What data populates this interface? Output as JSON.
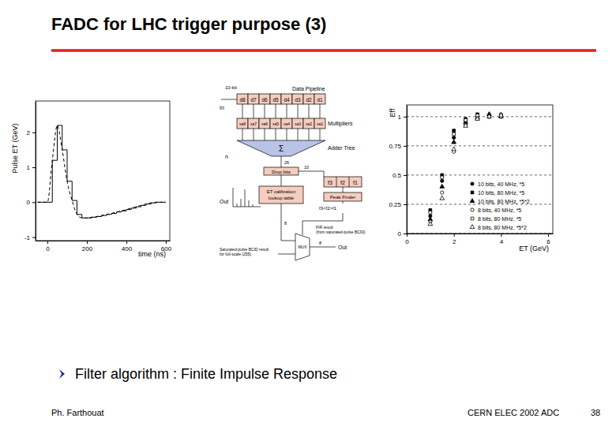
{
  "slide": {
    "title": "FADC for LHC trigger purpose (3)",
    "bullet": "Filter algorithm : Finite Impulse Response",
    "author": "Ph. Farthouat",
    "footer": "CERN ELEC 2002 ADC",
    "page": 38
  },
  "chart_data": [
    {
      "type": "line",
      "xlabel": "time (ns)",
      "ylabel": "Pulse ET (GeV)",
      "x": [
        -50,
        -25,
        0,
        25,
        50,
        75,
        100,
        125,
        150,
        175,
        200,
        225,
        250,
        275,
        300,
        325,
        350,
        375,
        400,
        425,
        450,
        475,
        500,
        525,
        550,
        575,
        600
      ],
      "series": [
        {
          "type": "line",
          "color": "#000000",
          "line_style": "dashed",
          "values": [
            0,
            0,
            0,
            1.2,
            2.2,
            1.5,
            0.6,
            0.05,
            -0.35,
            -0.45,
            -0.45,
            -0.43,
            -0.41,
            -0.38,
            -0.35,
            -0.32,
            -0.28,
            -0.25,
            -0.21,
            -0.17,
            -0.13,
            -0.09,
            -0.05,
            -0.02,
            0,
            0,
            0
          ]
        },
        {
          "type": "step",
          "color": "#000000",
          "line_style": "solid",
          "values": [
            0,
            0,
            0,
            1.2,
            2.2,
            1.5,
            0.6,
            0.05,
            -0.35,
            -0.45,
            -0.45,
            -0.43,
            -0.41,
            -0.38,
            -0.35,
            -0.32,
            -0.28,
            -0.25,
            -0.21,
            -0.17,
            -0.13,
            -0.09,
            -0.05,
            -0.02,
            0,
            0,
            0
          ]
        }
      ],
      "xlim": [
        -60,
        620
      ],
      "xticks": [
        0,
        200,
        400,
        600
      ],
      "ylim": [
        -1.1,
        2.9
      ],
      "yticks": [
        -1,
        0,
        1,
        2
      ],
      "grid": false
    },
    {
      "type": "scatter",
      "xlabel": "ET (GeV)",
      "ylabel": "Eff",
      "x": [
        1,
        1.5,
        2,
        2.5,
        3,
        3.5,
        4
      ],
      "series": [
        {
          "name": "10 bits, 40 MHz, *5",
          "color": "#000000",
          "marker": "circle",
          "values": [
            0.15,
            0.45,
            0.82,
            0.96,
            1.0,
            1.01,
            1.0
          ]
        },
        {
          "name": "10 bits, 80 MHz, *5",
          "color": "#000000",
          "marker": "square",
          "values": [
            0.2,
            0.5,
            0.88,
            0.98,
            1.02,
            1.0,
            1.01
          ]
        },
        {
          "name": "10 bits, 80 MHz, *5*2",
          "color": "#000000",
          "marker": "triangle",
          "values": [
            0.12,
            0.4,
            0.78,
            0.95,
            0.99,
            1.02,
            1.0
          ]
        },
        {
          "name": "8 bits, 40 MHz, *5",
          "color": "#000000",
          "marker": "open-circle",
          "values": [
            0.1,
            0.35,
            0.7,
            0.93,
            0.99,
            1.0,
            1.02
          ]
        },
        {
          "name": "8 bits, 80 MHz, *5",
          "color": "#000000",
          "marker": "open-square",
          "values": [
            0.18,
            0.48,
            0.85,
            0.97,
            1.01,
            1.0,
            1.0
          ]
        },
        {
          "name": "8 bits, 80 MHz, *5*2",
          "color": "#000000",
          "marker": "open-triangle",
          "values": [
            0.08,
            0.3,
            0.72,
            0.92,
            0.98,
            1.0,
            1.01
          ]
        }
      ],
      "xlim": [
        0,
        6.2
      ],
      "xticks": [
        0,
        2,
        4,
        6
      ],
      "ylim": [
        0,
        1.1
      ],
      "yticks": [
        0,
        0.25,
        0.5,
        0.75,
        1
      ],
      "grid": true,
      "legend": "lower right"
    }
  ],
  "diagram": {
    "input_bits": "10-bit",
    "pipeline_label": "Data Pipeline",
    "in_label": "In",
    "samples": [
      "d8",
      "d7",
      "d6",
      "d5",
      "d4",
      "d3",
      "d2",
      "d1"
    ],
    "multipliers": [
      "xa8",
      "xa7",
      "xa6",
      "xa5",
      "xa4",
      "xa3",
      "xa2",
      "xa1"
    ],
    "multiplier_label": "Multipliers",
    "adder_label": "Adder Tree",
    "sigma": "Σ",
    "drop_bits": "Drop bits",
    "bits": [
      "26",
      "10",
      "8",
      "8"
    ],
    "lut_lines": [
      "ET calibration",
      "lookup table"
    ],
    "peak_values": [
      "f3",
      "f2",
      "f1"
    ],
    "peak_finder": "Peak Finder",
    "peak_condition": "f3<f2>f1",
    "mux": "MUX",
    "out": "Out",
    "n_label": "n",
    "inset_out": "Out",
    "saturated_lines": [
      "Saturated-pulse BCID result",
      "for full-scale (255)"
    ],
    "fir_lines": [
      "FIR result",
      "(from saturated-pulse BCID)"
    ]
  }
}
